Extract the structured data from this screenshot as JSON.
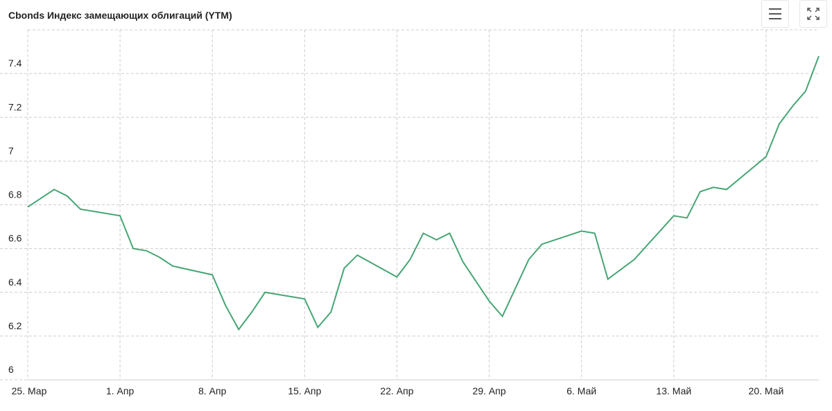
{
  "chart_data": {
    "type": "line",
    "title": "Cbonds Индекс замещающих облигаций (YTM)",
    "x": [
      "03-25",
      "03-26",
      "03-27",
      "03-28",
      "03-29",
      "04-01",
      "04-02",
      "04-03",
      "04-04",
      "04-05",
      "04-08",
      "04-09",
      "04-10",
      "04-11",
      "04-12",
      "04-15",
      "04-16",
      "04-17",
      "04-18",
      "04-19",
      "04-22",
      "04-23",
      "04-24",
      "04-25",
      "04-26",
      "04-27",
      "04-29",
      "04-30",
      "05-02",
      "05-03",
      "05-06",
      "05-07",
      "05-08",
      "05-10",
      "05-13",
      "05-14",
      "05-15",
      "05-16",
      "05-17",
      "05-20",
      "05-21",
      "05-22",
      "05-23",
      "05-24"
    ],
    "series": [
      {
        "name": "Cbonds Индекс замещающих облигаций (YTM)",
        "color": "#45a574",
        "values": [
          6.79,
          6.83,
          6.87,
          6.84,
          6.78,
          6.75,
          6.6,
          6.59,
          6.56,
          6.52,
          6.48,
          6.34,
          6.23,
          6.31,
          6.4,
          6.37,
          6.24,
          6.31,
          6.51,
          6.57,
          6.47,
          6.55,
          6.67,
          6.64,
          6.67,
          6.54,
          6.36,
          6.29,
          6.55,
          6.62,
          6.68,
          6.67,
          6.46,
          6.55,
          6.75,
          6.74,
          6.86,
          6.88,
          6.87,
          7.02,
          7.17,
          7.25,
          7.32,
          7.48
        ]
      }
    ],
    "xlim": [
      "03-25",
      "05-24"
    ],
    "xticks": [
      {
        "value": "03-25",
        "label": "25. Мар"
      },
      {
        "value": "04-01",
        "label": "1. Апр"
      },
      {
        "value": "04-08",
        "label": "8. Апр"
      },
      {
        "value": "04-15",
        "label": "15. Апр"
      },
      {
        "value": "04-22",
        "label": "22. Апр"
      },
      {
        "value": "04-29",
        "label": "29. Апр"
      },
      {
        "value": "05-06",
        "label": "6. Май"
      },
      {
        "value": "05-13",
        "label": "13. Май"
      },
      {
        "value": "05-20",
        "label": "20. Май"
      }
    ],
    "ylim": [
      6,
      7.6
    ],
    "yticks": [
      6,
      6.2,
      6.4,
      6.6,
      6.8,
      7,
      7.2,
      7.4
    ],
    "grid": true
  }
}
